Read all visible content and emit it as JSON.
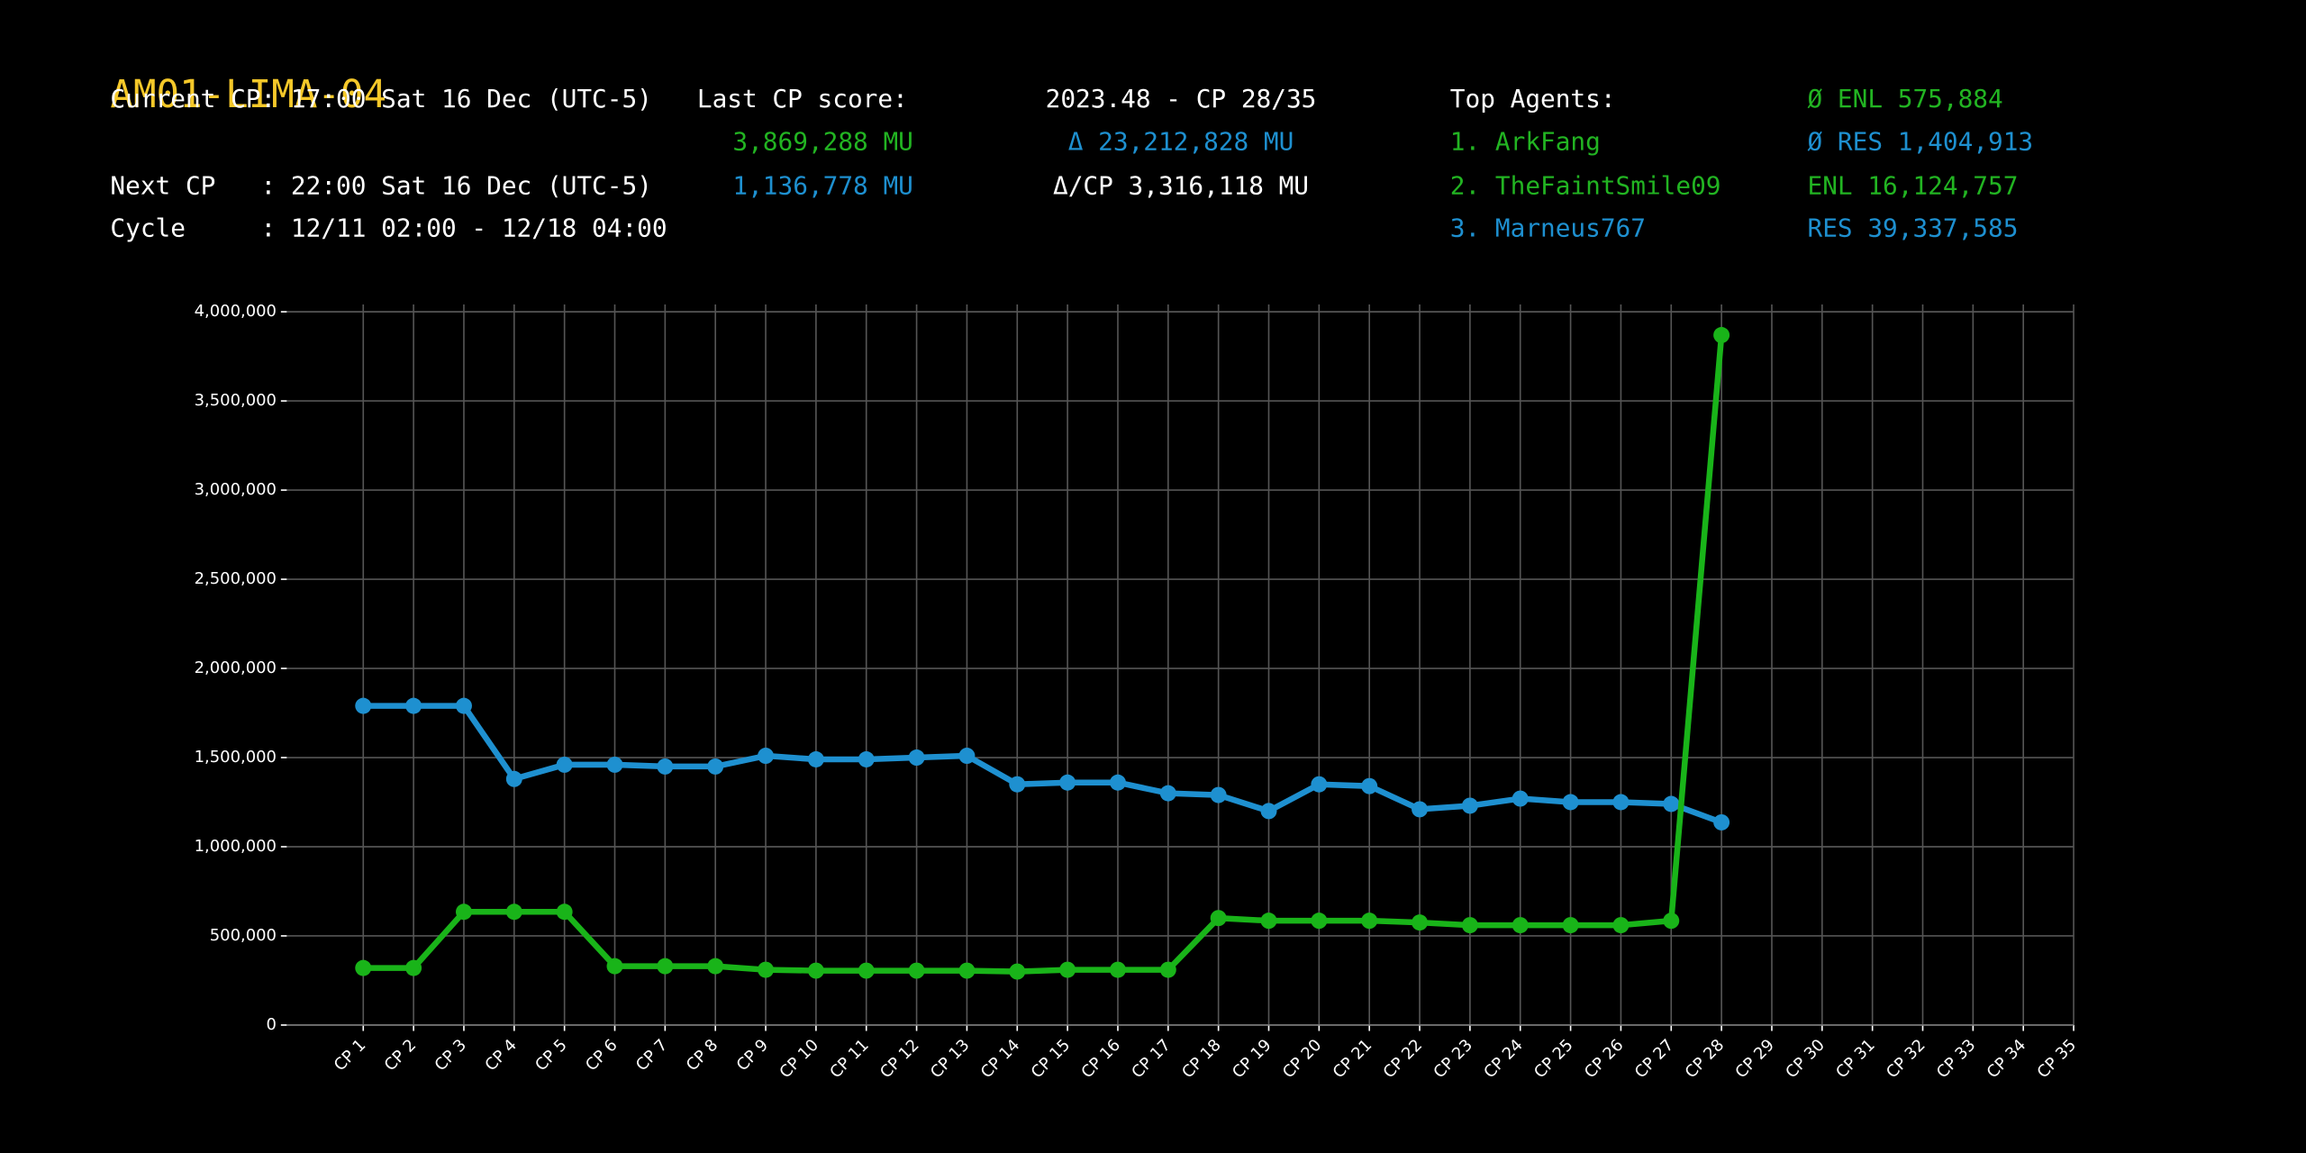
{
  "header": {
    "title": "AM01-LIMA-04",
    "rows": [
      [
        {
          "text": "Current CP: 17:00 Sat 16 Dec (UTC-5)",
          "color": "#ffffff"
        },
        {
          "text": "Last CP score:",
          "color": "#ffffff"
        },
        {
          "text": "2023.48 - CP 28/35",
          "color": "#ffffff"
        },
        {
          "text": "Top Agents:",
          "color": "#ffffff"
        },
        {
          "text": "Ø ENL 575,884",
          "color": "#22b422"
        }
      ],
      [
        {
          "text": "",
          "color": "#ffffff"
        },
        {
          "text": "3,869,288 MU",
          "color": "#22b422"
        },
        {
          "text": "Δ 23,212,828 MU",
          "color": "#1e90d0"
        },
        {
          "text": "1. ArkFang",
          "color": "#22b422"
        },
        {
          "text": "Ø RES 1,404,913",
          "color": "#1e90d0"
        }
      ],
      [
        {
          "text": "Next CP   : 22:00 Sat 16 Dec (UTC-5)",
          "color": "#ffffff"
        },
        {
          "text": "1,136,778 MU",
          "color": "#1e90d0"
        },
        {
          "text": "Δ/CP 3,316,118 MU",
          "color": "#ffffff"
        },
        {
          "text": "2. TheFaintSmile09",
          "color": "#22b422"
        },
        {
          "text": "ENL 16,124,757",
          "color": "#22b422"
        }
      ],
      [
        {
          "text": "Cycle     : 12/11 02:00 - 12/18 04:00",
          "color": "#ffffff"
        },
        {
          "text": "",
          "color": "#ffffff"
        },
        {
          "text": "",
          "color": "#ffffff"
        },
        {
          "text": "3. Marneus767",
          "color": "#1e90d0"
        },
        {
          "text": "RES 39,337,585",
          "color": "#1e90d0"
        }
      ]
    ]
  },
  "chart_data": {
    "type": "line",
    "categories": [
      "CP 1",
      "CP 2",
      "CP 3",
      "CP 4",
      "CP 5",
      "CP 6",
      "CP 7",
      "CP 8",
      "CP 9",
      "CP 10",
      "CP 11",
      "CP 12",
      "CP 13",
      "CP 14",
      "CP 15",
      "CP 16",
      "CP 17",
      "CP 18",
      "CP 19",
      "CP 20",
      "CP 21",
      "CP 22",
      "CP 23",
      "CP 24",
      "CP 25",
      "CP 26",
      "CP 27",
      "CP 28",
      "CP 29",
      "CP 30",
      "CP 31",
      "CP 32",
      "CP 33",
      "CP 34",
      "CP 35"
    ],
    "series": [
      {
        "color": "#1e90d0",
        "values": [
          1790000,
          1790000,
          1790000,
          1380000,
          1460000,
          1460000,
          1450000,
          1450000,
          1510000,
          1490000,
          1490000,
          1500000,
          1510000,
          1350000,
          1360000,
          1360000,
          1300000,
          1290000,
          1200000,
          1350000,
          1340000,
          1210000,
          1230000,
          1270000,
          1250000,
          1250000,
          1240000,
          1136778,
          null,
          null,
          null,
          null,
          null,
          null,
          null
        ]
      },
      {
        "color": "#19b419",
        "values": [
          320000,
          320000,
          635000,
          635000,
          635000,
          330000,
          330000,
          330000,
          310000,
          305000,
          305000,
          305000,
          305000,
          300000,
          310000,
          310000,
          310000,
          600000,
          585000,
          585000,
          585000,
          575000,
          560000,
          560000,
          560000,
          560000,
          585000,
          3869288,
          null,
          null,
          null,
          null,
          null,
          null,
          null
        ]
      }
    ],
    "ylim": [
      0,
      4000000
    ],
    "yticks": [
      0,
      {
        "value": 500000,
        "label": "500,000"
      },
      {
        "value": 1000000,
        "label": "1,000,000"
      },
      {
        "value": 1500000,
        "label": "1,500,000"
      },
      {
        "value": 2000000,
        "label": "2,000,000"
      },
      {
        "value": 2500000,
        "label": "2,500,000"
      },
      {
        "value": 3000000,
        "label": "3,000,000"
      },
      {
        "value": 3500000,
        "label": "3,500,000"
      },
      {
        "value": 4000000,
        "label": "4,000,000"
      }
    ],
    "grid": true
  }
}
